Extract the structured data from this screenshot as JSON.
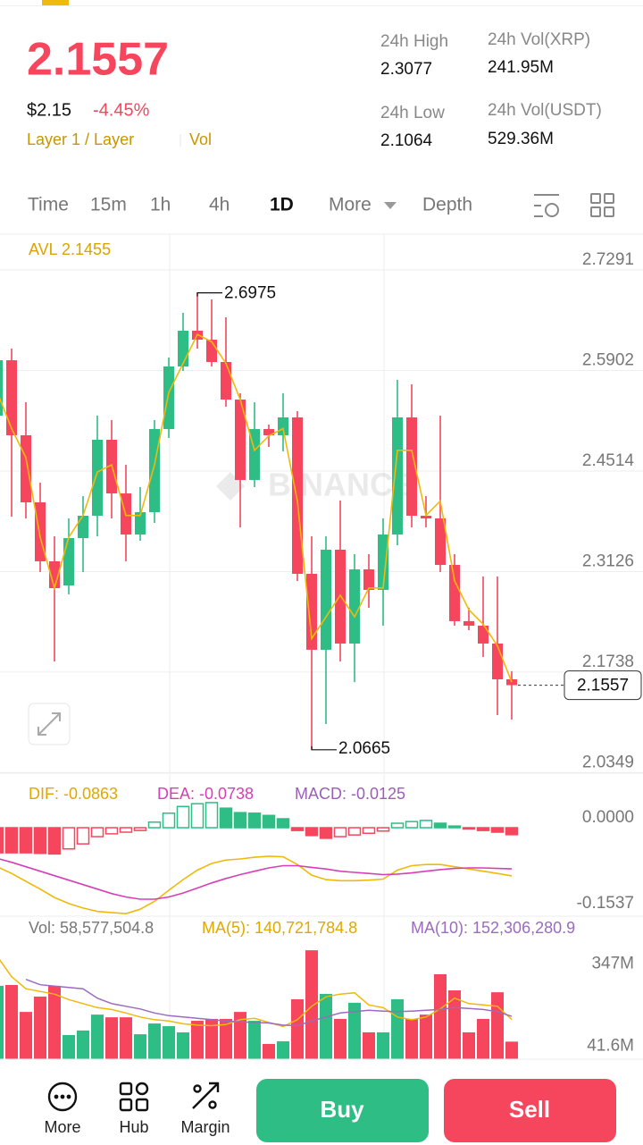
{
  "header": {
    "price": "2.1557",
    "usd_price": "$2.15",
    "change": "-4.45%",
    "tags": [
      "Layer 1 / Layer",
      "Vol"
    ],
    "stats": [
      {
        "label": "24h High",
        "value": "2.3077"
      },
      {
        "label": "24h Vol(XRP)",
        "value": "241.95M"
      },
      {
        "label": "24h Low",
        "value": "2.1064"
      },
      {
        "label": "24h Vol(USDT)",
        "value": "529.36M"
      }
    ]
  },
  "tabs": [
    "Time",
    "15m",
    "1h",
    "4h",
    "1D",
    "More",
    "Depth"
  ],
  "active_tab": 4,
  "watermark": "BINANCE",
  "chart_data": [
    {
      "type": "candlestick",
      "indicator_label": "AVL 2.1455",
      "ylim": [
        2.0342,
        2.7785
      ],
      "yticks": [
        2.7291,
        2.5902,
        2.4514,
        2.3126,
        2.1738,
        2.0349
      ],
      "grid": true,
      "up_color": "#2ebd85",
      "down_color": "#f6465d",
      "candles": {
        "open": [
          2.5279,
          2.6044,
          2.5008,
          2.4082,
          2.3268,
          2.2934,
          2.3588,
          2.3897,
          2.4946,
          2.4205,
          2.3638,
          2.3946,
          2.5094,
          2.5958,
          2.6452,
          2.6328,
          2.602,
          2.5501,
          2.4391,
          2.5094,
          2.5008,
          2.5255,
          2.3095,
          2.2046,
          2.3428,
          2.2132,
          2.3156,
          2.2873,
          2.3638,
          2.5255,
          2.3897,
          2.386,
          2.3218,
          2.2441,
          2.2379,
          2.2132,
          2.1638
        ],
        "high": [
          2.6205,
          2.6205,
          2.5464,
          2.4354,
          2.3613,
          2.386,
          2.4168,
          2.5279,
          2.5218,
          2.46,
          2.4292,
          2.5218,
          2.6082,
          2.6699,
          2.6975,
          2.6884,
          2.6637,
          2.5588,
          2.5464,
          2.5156,
          2.5588,
          2.5341,
          2.3613,
          2.3613,
          2.4107,
          2.3366,
          2.3366,
          2.386,
          2.5773,
          2.5711,
          2.4168,
          2.5279,
          2.3366,
          2.2626,
          2.3058,
          2.3058,
          2.175
        ],
        "low": [
          2.5094,
          2.3885,
          2.386,
          2.3119,
          2.1885,
          2.2811,
          2.3119,
          2.3613,
          2.386,
          2.3268,
          2.3551,
          2.3798,
          2.4971,
          2.5896,
          2.6205,
          2.5958,
          2.5403,
          2.3737,
          2.4292,
          2.4847,
          2.4786,
          2.2996,
          2.0665,
          2.1021,
          2.1885,
          2.16,
          2.2626,
          2.2379,
          2.349,
          2.3737,
          2.3737,
          2.3119,
          2.2379,
          2.2317,
          2.1947,
          2.1145,
          2.1083
        ],
        "close": [
          2.6044,
          2.5008,
          2.4082,
          2.3268,
          2.2897,
          2.3588,
          2.3897,
          2.4946,
          2.4205,
          2.3638,
          2.3946,
          2.5094,
          2.5958,
          2.6452,
          2.6328,
          2.602,
          2.5501,
          2.4391,
          2.5094,
          2.5008,
          2.5255,
          2.3095,
          2.2046,
          2.3428,
          2.2132,
          2.3156,
          2.2873,
          2.3638,
          2.5255,
          2.3897,
          2.386,
          2.3218,
          2.2441,
          2.2379,
          2.2132,
          2.1638,
          2.1557
        ]
      },
      "ma": {
        "color": "#f0b90b",
        "values": [
          2.56,
          2.51,
          2.47,
          2.36,
          2.29,
          2.36,
          2.39,
          2.45,
          2.46,
          2.39,
          2.39,
          2.46,
          2.56,
          2.6,
          2.64,
          2.63,
          2.6,
          2.55,
          2.48,
          2.5,
          2.51,
          2.41,
          2.22,
          2.25,
          2.28,
          2.25,
          2.29,
          2.29,
          2.48,
          2.48,
          2.39,
          2.41,
          2.3,
          2.26,
          2.24,
          2.21,
          2.16
        ]
      },
      "max_label": 2.6975,
      "min_label": 2.0665,
      "last_price": 2.1557
    },
    {
      "type": "macd",
      "legend": [
        {
          "label": "DIF: -0.0863",
          "color": "#e0a800"
        },
        {
          "label": "DEA: -0.0738",
          "color": "#d63fb5"
        },
        {
          "label": "MACD: -0.0125",
          "color": "#9b5fb5"
        }
      ],
      "ylim": [
        -0.1585,
        0.0865
      ],
      "yticks": [
        {
          "value": 0,
          "label": "0.0000"
        },
        {
          "value": -0.1537,
          "label": "-0.1537"
        }
      ],
      "histogram": {
        "up_color": "#2ebd85",
        "down_color": "#f6465d",
        "values": [
          -0.045,
          -0.045,
          -0.045,
          -0.046,
          -0.047,
          -0.038,
          -0.029,
          -0.016,
          -0.011,
          -0.008,
          -0.005,
          0.01,
          0.026,
          0.038,
          0.043,
          0.045,
          0.035,
          0.027,
          0.026,
          0.022,
          0.016,
          -0.005,
          -0.014,
          -0.019,
          -0.016,
          -0.013,
          -0.01,
          -0.006,
          0.008,
          0.011,
          0.013,
          0.008,
          0.003,
          -0.002,
          -0.005,
          -0.008,
          -0.0125
        ]
      },
      "dif": {
        "color": "#f0b90b",
        "values": [
          -0.07,
          -0.082,
          -0.096,
          -0.11,
          -0.125,
          -0.136,
          -0.144,
          -0.15,
          -0.152,
          -0.154,
          -0.146,
          -0.132,
          -0.112,
          -0.093,
          -0.076,
          -0.064,
          -0.058,
          -0.056,
          -0.053,
          -0.051,
          -0.052,
          -0.066,
          -0.085,
          -0.093,
          -0.095,
          -0.095,
          -0.094,
          -0.092,
          -0.076,
          -0.068,
          -0.066,
          -0.066,
          -0.07,
          -0.074,
          -0.078,
          -0.082,
          -0.0863
        ]
      },
      "dea": {
        "color": "#d63fb5",
        "values": [
          -0.055,
          -0.062,
          -0.07,
          -0.078,
          -0.086,
          -0.094,
          -0.102,
          -0.11,
          -0.118,
          -0.124,
          -0.128,
          -0.128,
          -0.124,
          -0.117,
          -0.108,
          -0.099,
          -0.091,
          -0.084,
          -0.078,
          -0.072,
          -0.068,
          -0.068,
          -0.071,
          -0.074,
          -0.078,
          -0.08,
          -0.082,
          -0.084,
          -0.083,
          -0.081,
          -0.078,
          -0.075,
          -0.073,
          -0.072,
          -0.072,
          -0.073,
          -0.0738
        ]
      }
    },
    {
      "type": "volume",
      "legend": [
        {
          "label": "Vol: 58,577,504.8",
          "color": "#777777"
        },
        {
          "label": "MA(5): 140,721,784.8",
          "color": "#e0a800"
        },
        {
          "label": "MA(10): 152,306,280.9",
          "color": "#9a6bc0"
        }
      ],
      "ylim": [
        0,
        435
      ],
      "yticks": [
        {
          "value": 347,
          "label": "347M"
        },
        {
          "value": 41.6,
          "label": "41.6M"
        }
      ],
      "values": [
        266,
        269,
        169,
        226,
        266,
        83,
        100,
        159,
        149,
        149,
        86,
        126,
        116,
        93,
        136,
        143,
        143,
        169,
        136,
        50,
        60,
        216,
        398,
        236,
        143,
        203,
        93,
        93,
        216,
        143,
        159,
        309,
        249,
        93,
        143,
        242,
        58.6
      ],
      "ma5": {
        "color": "#f0b90b",
        "values": [
          375,
          300,
          255,
          245,
          235,
          215,
          200,
          185,
          178,
          165,
          150,
          140,
          135,
          125,
          120,
          118,
          122,
          140,
          145,
          130,
          115,
          140,
          190,
          225,
          235,
          240,
          195,
          185,
          150,
          140,
          150,
          180,
          220,
          200,
          195,
          190,
          140.7
        ]
      },
      "ma10": {
        "color": "#9a6bc0",
        "values": [
          null,
          null,
          290,
          270,
          265,
          260,
          255,
          220,
          200,
          190,
          180,
          165,
          155,
          150,
          145,
          140,
          135,
          132,
          130,
          128,
          120,
          118,
          135,
          150,
          165,
          170,
          175,
          172,
          170,
          172,
          175,
          178,
          185,
          182,
          178,
          170,
          152.3
        ]
      }
    }
  ],
  "nav": [
    "More",
    "Hub",
    "Margin"
  ],
  "buttons": [
    "Buy",
    "Sell"
  ]
}
